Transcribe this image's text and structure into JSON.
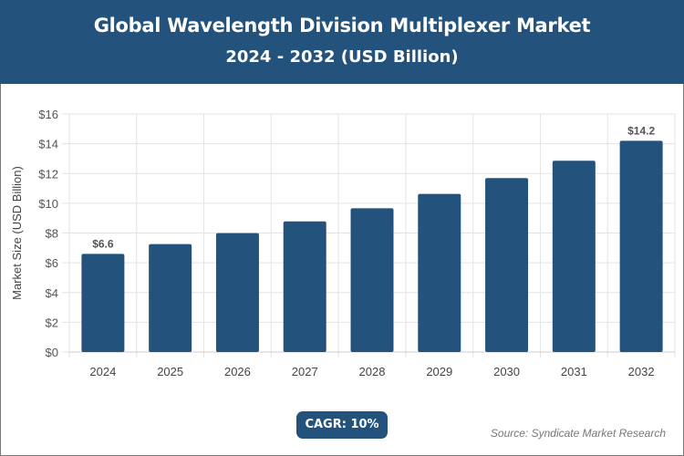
{
  "header": {
    "title": "Global Wavelength Division Multiplexer Market",
    "subtitle": "2024 - 2032 (USD Billion)"
  },
  "chart_data": {
    "type": "bar",
    "categories": [
      "2024",
      "2025",
      "2026",
      "2027",
      "2028",
      "2029",
      "2030",
      "2031",
      "2032"
    ],
    "values": [
      6.6,
      7.26,
      7.99,
      8.78,
      9.66,
      10.63,
      11.69,
      12.86,
      14.2
    ],
    "data_labels": {
      "2024": "$6.6",
      "2032": "$14.2"
    },
    "ylabel": "Market Size (USD Billion)",
    "ylim": [
      0,
      16
    ],
    "yticks": [
      0,
      2,
      4,
      6,
      8,
      10,
      12,
      14,
      16
    ],
    "ytick_labels": [
      "$0",
      "$2",
      "$4",
      "$6",
      "$8",
      "$10",
      "$12",
      "$14",
      "$16"
    ],
    "grid": true,
    "bar_color": "#23527c"
  },
  "footer": {
    "cagr": "CAGR: 10%",
    "source": "Source: Syndicate Market Research"
  }
}
